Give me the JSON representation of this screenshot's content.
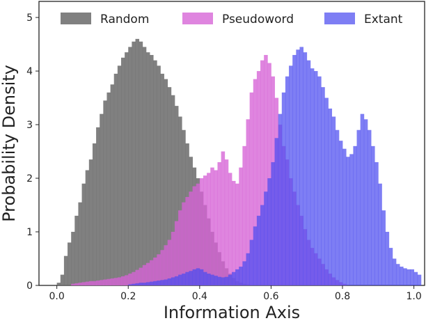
{
  "chart_data": {
    "type": "histogram",
    "xlabel": "Information Axis",
    "ylabel": "Probability Density",
    "xlim": [
      -0.05,
      1.03
    ],
    "ylim": [
      0,
      5.3
    ],
    "x_ticks": [
      "0.0",
      "0.2",
      "0.4",
      "0.6",
      "0.8",
      "1.0"
    ],
    "x_tick_values": [
      0.0,
      0.2,
      0.4,
      0.6,
      0.8,
      1.0
    ],
    "y_ticks": [
      "0",
      "1",
      "2",
      "3",
      "4",
      "5"
    ],
    "y_tick_values": [
      0,
      1,
      2,
      3,
      4,
      5
    ],
    "bin_width": 0.01,
    "grid": false,
    "legend_position": "top",
    "series": [
      {
        "name": "Random",
        "color": "#6e6e6e",
        "opacity": 0.88,
        "x_start": 0.0,
        "values": [
          0.05,
          0.2,
          0.55,
          0.8,
          1.0,
          1.3,
          1.55,
          1.9,
          2.15,
          2.35,
          2.65,
          2.95,
          3.2,
          3.45,
          3.6,
          3.75,
          3.95,
          4.1,
          4.25,
          4.35,
          4.45,
          4.55,
          4.6,
          4.55,
          4.45,
          4.35,
          4.3,
          4.2,
          4.1,
          3.95,
          3.85,
          3.7,
          3.55,
          3.35,
          3.15,
          2.9,
          2.65,
          2.4,
          2.2,
          2.0,
          1.75,
          1.5,
          1.25,
          1.0,
          0.8,
          0.62,
          0.45,
          0.32,
          0.22,
          0.14,
          0.08,
          0.05,
          0.03,
          0.02,
          0.01
        ]
      },
      {
        "name": "Pseudoword",
        "color": "#d663d6",
        "opacity": 0.78,
        "x_start": 0.04,
        "values": [
          0.03,
          0.04,
          0.05,
          0.06,
          0.07,
          0.08,
          0.08,
          0.09,
          0.1,
          0.11,
          0.12,
          0.13,
          0.14,
          0.15,
          0.17,
          0.19,
          0.22,
          0.25,
          0.29,
          0.33,
          0.38,
          0.42,
          0.47,
          0.52,
          0.58,
          0.66,
          0.75,
          0.85,
          1.0,
          1.2,
          1.4,
          1.55,
          1.65,
          1.75,
          1.85,
          1.9,
          2.0,
          2.05,
          2.1,
          2.2,
          2.15,
          2.3,
          2.5,
          2.35,
          2.1,
          1.95,
          1.9,
          2.2,
          2.6,
          3.1,
          3.6,
          3.85,
          4.0,
          4.2,
          4.3,
          4.15,
          3.9,
          3.5,
          3.0,
          2.6,
          2.35,
          2.0,
          1.75,
          1.5,
          1.3,
          1.05,
          0.85,
          0.7,
          0.6,
          0.5,
          0.4,
          0.3,
          0.22,
          0.15,
          0.1,
          0.06,
          0.03
        ]
      },
      {
        "name": "Extant",
        "color": "#4c4cf0",
        "opacity": 0.72,
        "x_start": 0.2,
        "values": [
          0.02,
          0.03,
          0.04,
          0.05,
          0.05,
          0.06,
          0.07,
          0.08,
          0.09,
          0.1,
          0.11,
          0.13,
          0.15,
          0.17,
          0.2,
          0.22,
          0.25,
          0.27,
          0.3,
          0.32,
          0.3,
          0.25,
          0.22,
          0.2,
          0.18,
          0.16,
          0.15,
          0.16,
          0.2,
          0.25,
          0.3,
          0.35,
          0.45,
          0.6,
          0.85,
          1.1,
          1.3,
          1.5,
          1.75,
          2.0,
          2.3,
          2.75,
          3.2,
          3.6,
          3.9,
          4.1,
          4.3,
          4.4,
          4.45,
          4.35,
          4.2,
          4.05,
          4.0,
          3.9,
          3.7,
          3.5,
          3.3,
          3.15,
          2.9,
          2.7,
          2.55,
          2.4,
          2.45,
          2.6,
          2.9,
          3.2,
          3.1,
          2.9,
          2.6,
          2.3,
          1.9,
          1.4,
          1.0,
          0.7,
          0.5,
          0.4,
          0.35,
          0.32,
          0.3,
          0.3,
          0.25,
          0.2
        ]
      }
    ]
  }
}
